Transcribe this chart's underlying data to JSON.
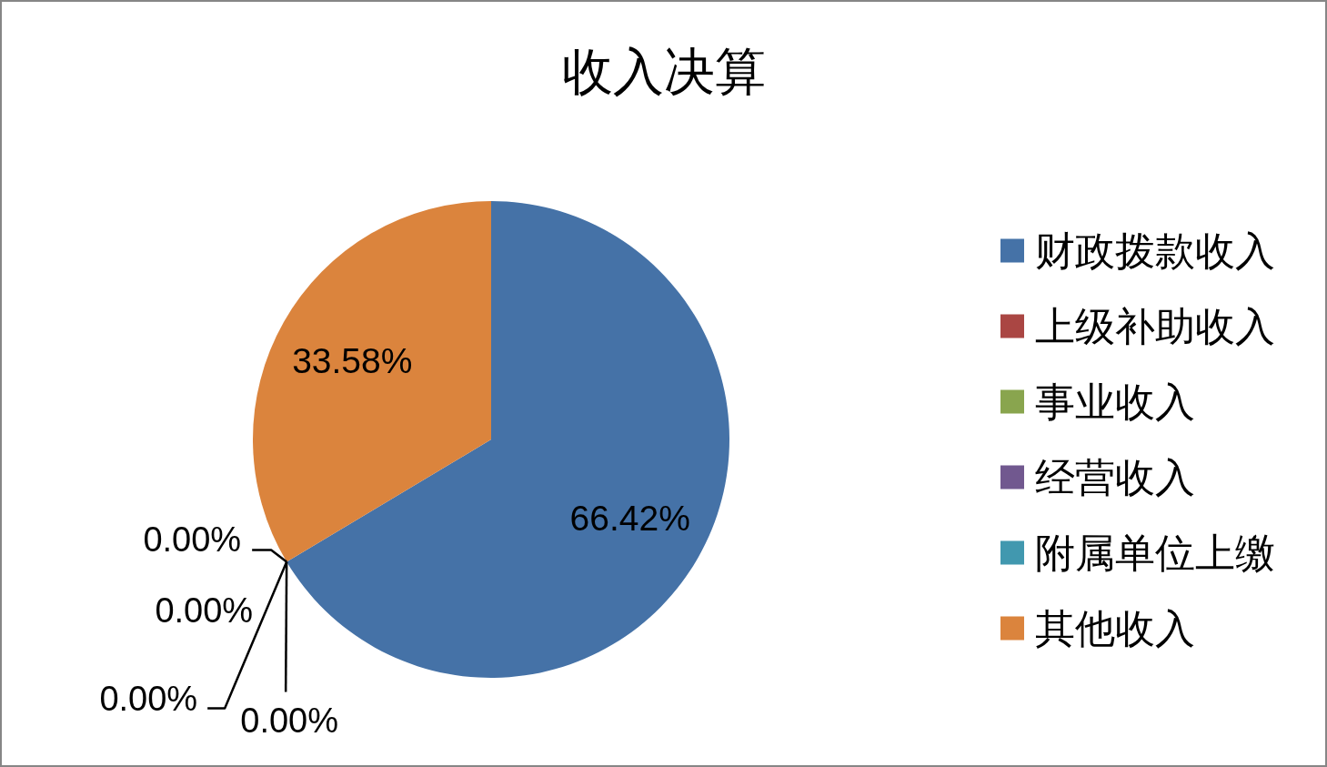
{
  "chart_data": {
    "type": "pie",
    "title": "收入决算",
    "categories": [
      "财政拨款收入",
      "上级补助收入",
      "事业收入",
      "经营收入",
      "附属单位上缴",
      "其他收入"
    ],
    "values": [
      66.42,
      0,
      0,
      0,
      0,
      33.58
    ],
    "colors": [
      "#4572a7",
      "#aa4643",
      "#89a54e",
      "#71588f",
      "#4198af",
      "#db843d"
    ],
    "value_labels": [
      "66.42%",
      "0.00%",
      "0.00%",
      "0.00%",
      "0.00%",
      "33.58%"
    ],
    "legend": "right"
  }
}
